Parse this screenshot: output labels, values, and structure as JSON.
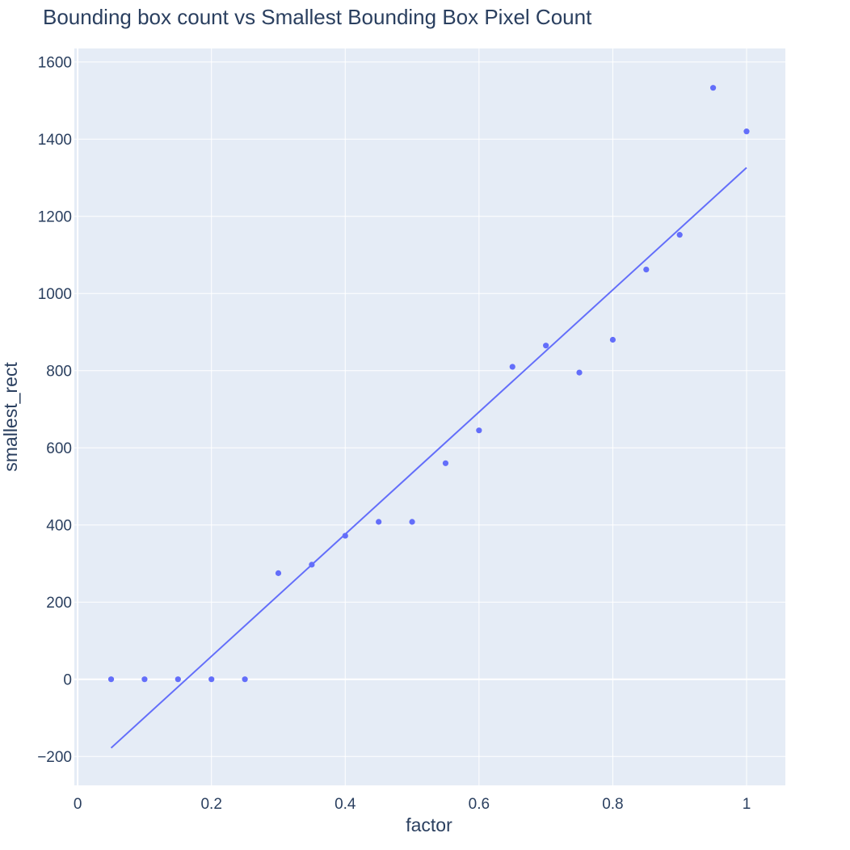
{
  "chart_data": {
    "type": "scatter",
    "title": "Bounding box count vs Smallest Bounding Box Pixel Count",
    "xlabel": "factor",
    "ylabel": "smallest_rect",
    "xlim": [
      -0.005,
      1.058
    ],
    "ylim": [
      -275,
      1635
    ],
    "x_ticks": [
      {
        "value": 0,
        "label": "0"
      },
      {
        "value": 0.2,
        "label": "0.2"
      },
      {
        "value": 0.4,
        "label": "0.4"
      },
      {
        "value": 0.6,
        "label": "0.6"
      },
      {
        "value": 0.8,
        "label": "0.8"
      },
      {
        "value": 1,
        "label": "1"
      }
    ],
    "y_ticks": [
      {
        "value": -200,
        "label": "−200"
      },
      {
        "value": 0,
        "label": "0"
      },
      {
        "value": 200,
        "label": "200"
      },
      {
        "value": 400,
        "label": "400"
      },
      {
        "value": 600,
        "label": "600"
      },
      {
        "value": 800,
        "label": "800"
      },
      {
        "value": 1000,
        "label": "1000"
      },
      {
        "value": 1200,
        "label": "1200"
      },
      {
        "value": 1400,
        "label": "1400"
      },
      {
        "value": 1600,
        "label": "1600"
      }
    ],
    "grid": true,
    "legend": "none",
    "series": [
      {
        "mode": "markers",
        "x": [
          0.05,
          0.1,
          0.15,
          0.2,
          0.25,
          0.3,
          0.35,
          0.4,
          0.45,
          0.5,
          0.55,
          0.6,
          0.65,
          0.7,
          0.75,
          0.8,
          0.85,
          0.9,
          0.95,
          1.0
        ],
        "y": [
          0,
          0,
          0,
          0,
          0,
          275,
          297,
          372,
          408,
          408,
          560,
          645,
          810,
          865,
          795,
          880,
          1062,
          1152,
          1533,
          1420
        ]
      },
      {
        "mode": "lines",
        "x": [
          0.05,
          1.0
        ],
        "y": [
          -178,
          1326
        ]
      }
    ],
    "colors": {
      "marker": "#636efa",
      "line": "#636efa",
      "plot_bg": "#e5ecf6",
      "grid": "#ffffff",
      "text": "#2a3f5f"
    }
  }
}
